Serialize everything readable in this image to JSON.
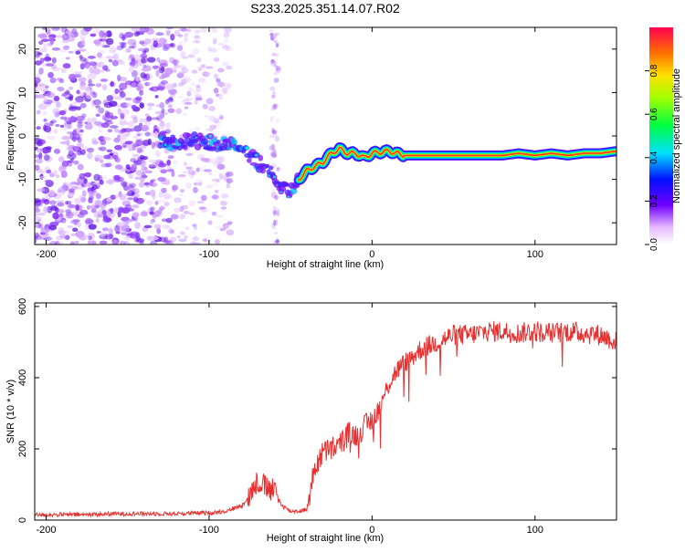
{
  "chart_data": [
    {
      "type": "heatmap",
      "title": "S233.2025.351.14.07.R02",
      "xlabel": "Height of straight line (km)",
      "ylabel": "Frequency (Hz)",
      "xlim": [
        -207,
        150
      ],
      "ylim": [
        -25,
        25
      ],
      "xticks": [
        -200,
        -100,
        0,
        100
      ],
      "yticks": [
        -20,
        -10,
        0,
        10,
        20
      ],
      "ridge": {
        "x": [
          -130,
          -120,
          -110,
          -100,
          -90,
          -80,
          -70,
          -60,
          -55,
          -50,
          -45,
          -40,
          -35,
          -30,
          -25,
          -20,
          -15,
          -10,
          -5,
          0,
          10,
          20,
          40,
          60,
          80,
          90,
          100,
          110,
          120,
          130,
          140,
          150
        ],
        "y": [
          -2,
          -1.5,
          -1,
          -1.5,
          -2,
          -3,
          -6,
          -9,
          -12,
          -13,
          -10,
          -8,
          -7,
          -6,
          -4,
          -3,
          -4,
          -4,
          -5,
          -4,
          -3.5,
          -4.5,
          -4.5,
          -4.5,
          -4.5,
          -4,
          -4.5,
          -4,
          -4.5,
          -4,
          -4,
          -3.5
        ]
      },
      "colorbar": {
        "label": "Normalized spectral amplitude",
        "range": [
          0.0,
          1.0
        ],
        "ticks": [
          "0.0",
          "0.2",
          "0.4",
          "0.6",
          "0.8"
        ],
        "tick_values": [
          0.0,
          0.2,
          0.4,
          0.6,
          0.8
        ]
      }
    },
    {
      "type": "line",
      "xlabel": "Height of straight line (km)",
      "ylabel": "SNR (10 * v/v)",
      "xlim": [
        -207,
        150
      ],
      "ylim": [
        0,
        610
      ],
      "xticks": [
        -200,
        -100,
        0,
        100
      ],
      "yticks": [
        0,
        200,
        400,
        600
      ],
      "series": [
        {
          "name": "SNR",
          "color": "#e83030",
          "x": [
            -207,
            -180,
            -150,
            -120,
            -100,
            -90,
            -80,
            -75,
            -70,
            -65,
            -60,
            -55,
            -50,
            -45,
            -40,
            -35,
            -30,
            -25,
            -20,
            -15,
            -10,
            -5,
            0,
            5,
            10,
            15,
            20,
            25,
            30,
            40,
            50,
            60,
            70,
            80,
            90,
            100,
            110,
            120,
            130,
            140,
            150
          ],
          "values": [
            15,
            15,
            18,
            18,
            20,
            25,
            40,
            70,
            110,
            90,
            80,
            40,
            25,
            25,
            30,
            150,
            190,
            200,
            210,
            240,
            240,
            260,
            280,
            320,
            380,
            420,
            440,
            460,
            480,
            500,
            520,
            520,
            530,
            530,
            525,
            530,
            525,
            530,
            525,
            520,
            500
          ]
        }
      ]
    }
  ]
}
